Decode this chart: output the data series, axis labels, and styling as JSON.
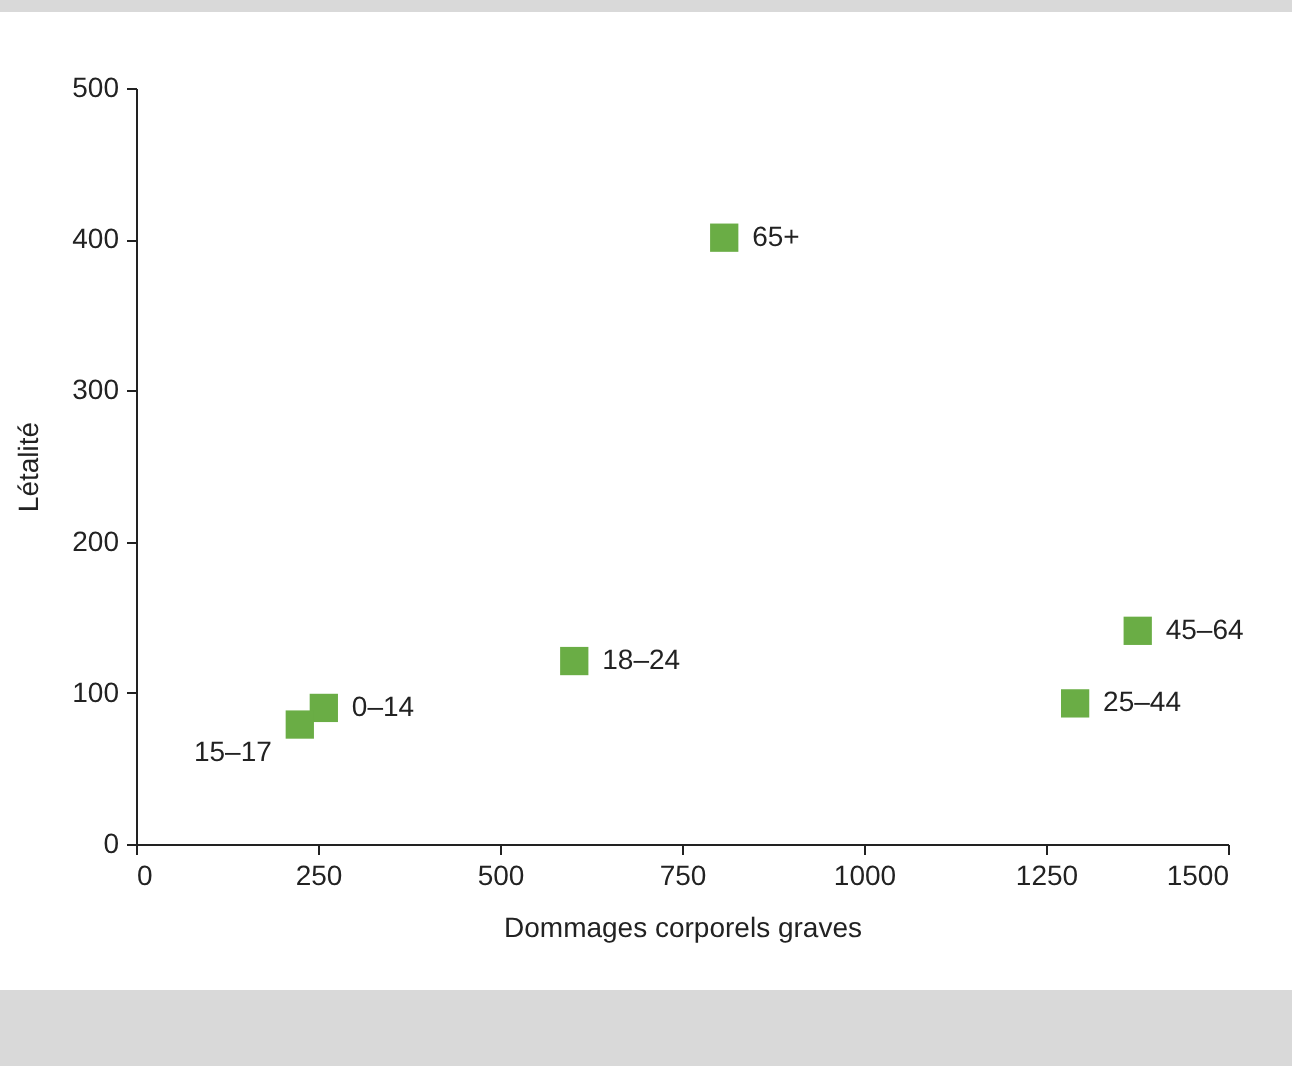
{
  "chart_data": {
    "type": "scatter",
    "xlabel": "Dommages corporels graves",
    "ylabel": "Létalité",
    "x": [
      258,
      225,
      602,
      1290,
      1376,
      808
    ],
    "values": [
      90,
      79,
      121,
      93,
      141,
      401
    ],
    "color": "#6aad45",
    "marker": "square",
    "grid": false,
    "xlim": [
      0,
      1500
    ],
    "xticks": [
      0,
      250,
      500,
      750,
      1000,
      1250,
      1500
    ],
    "ylim": [
      0,
      500
    ],
    "yticks": [
      0,
      100,
      200,
      300,
      400,
      500
    ],
    "annotations": [
      {
        "text": "0–14",
        "x": 258,
        "y": 90
      },
      {
        "text": "15–17",
        "x": 225,
        "y": 79
      },
      {
        "text": "18–24",
        "x": 602,
        "y": 121
      },
      {
        "text": "25–44",
        "x": 1290,
        "y": 93
      },
      {
        "text": "45–64",
        "x": 1376,
        "y": 141
      },
      {
        "text": "65+",
        "x": 808,
        "y": 401
      }
    ]
  }
}
